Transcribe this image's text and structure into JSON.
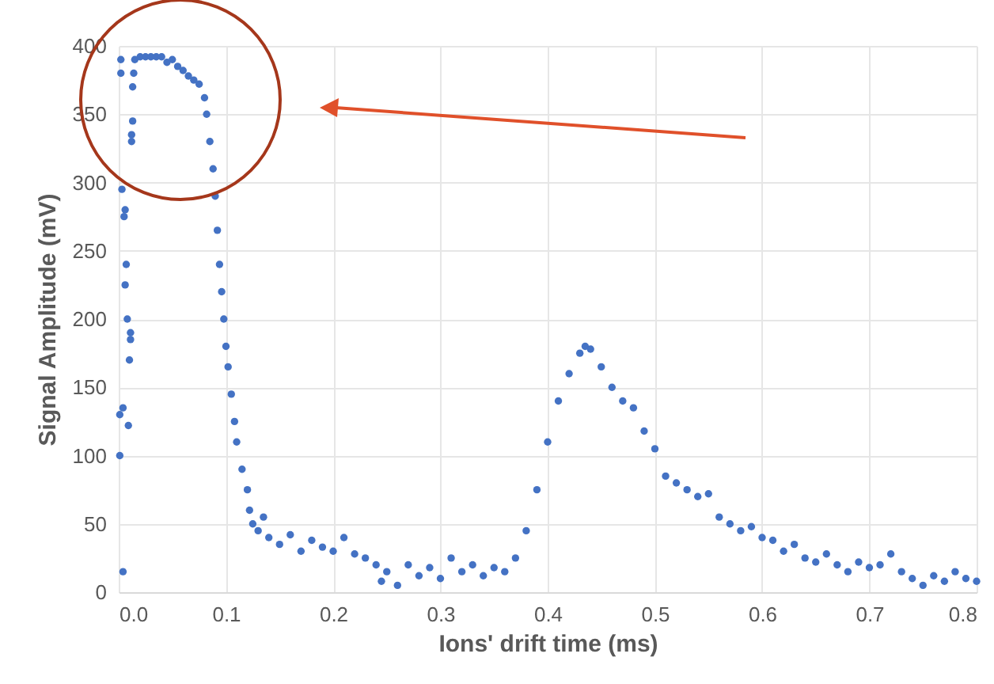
{
  "chart_data": {
    "type": "scatter",
    "xlabel": "Ions' drift time (ms)",
    "ylabel": "Signal Amplitude (mV)",
    "xlim": [
      0,
      0.8
    ],
    "xticks": [
      {
        "value": 0,
        "label": "0.0"
      },
      0.1,
      0.2,
      0.3,
      0.4,
      0.5,
      0.6,
      0.7,
      0.8
    ],
    "ylim": [
      0,
      400
    ],
    "yticks": [
      0,
      50,
      100,
      150,
      200,
      250,
      300,
      350,
      400
    ],
    "grid": true,
    "marker": "circle",
    "series": [
      {
        "color": "#4472c4",
        "x": [
          0.001,
          0.001,
          0.002,
          0.002,
          0.003,
          0.004,
          0.004,
          0.005,
          0.006,
          0.006,
          0.007,
          0.008,
          0.009,
          0.01,
          0.011,
          0.011,
          0.012,
          0.012,
          0.013,
          0.013,
          0.014,
          0.015,
          0.02,
          0.025,
          0.03,
          0.035,
          0.04,
          0.045,
          0.05,
          0.055,
          0.06,
          0.065,
          0.07,
          0.075,
          0.08,
          0.082,
          0.085,
          0.088,
          0.09,
          0.092,
          0.094,
          0.096,
          0.098,
          0.1,
          0.102,
          0.105,
          0.108,
          0.11,
          0.115,
          0.12,
          0.122,
          0.125,
          0.13,
          0.135,
          0.14,
          0.15,
          0.16,
          0.17,
          0.18,
          0.19,
          0.2,
          0.21,
          0.22,
          0.23,
          0.24,
          0.245,
          0.25,
          0.26,
          0.27,
          0.28,
          0.29,
          0.3,
          0.31,
          0.32,
          0.33,
          0.34,
          0.35,
          0.36,
          0.37,
          0.38,
          0.39,
          0.4,
          0.41,
          0.42,
          0.43,
          0.435,
          0.44,
          0.45,
          0.46,
          0.47,
          0.48,
          0.49,
          0.5,
          0.51,
          0.52,
          0.53,
          0.54,
          0.55,
          0.56,
          0.57,
          0.58,
          0.59,
          0.6,
          0.61,
          0.62,
          0.63,
          0.64,
          0.65,
          0.66,
          0.67,
          0.68,
          0.69,
          0.7,
          0.71,
          0.72,
          0.73,
          0.74,
          0.75,
          0.76,
          0.77,
          0.78,
          0.79,
          0.8
        ],
        "values": [
          100,
          130,
          390,
          380,
          295,
          15,
          135,
          275,
          280,
          225,
          240,
          200,
          122,
          170,
          185,
          190,
          330,
          335,
          345,
          370,
          380,
          390,
          392,
          392,
          392,
          392,
          392,
          388,
          390,
          385,
          382,
          378,
          375,
          372,
          362,
          350,
          330,
          310,
          290,
          265,
          240,
          220,
          200,
          180,
          165,
          145,
          125,
          110,
          90,
          75,
          60,
          50,
          45,
          55,
          40,
          35,
          42,
          30,
          38,
          33,
          30,
          40,
          28,
          25,
          20,
          8,
          15,
          5,
          20,
          12,
          18,
          10,
          25,
          15,
          20,
          12,
          18,
          15,
          25,
          45,
          75,
          110,
          140,
          160,
          175,
          180,
          178,
          165,
          150,
          140,
          135,
          118,
          105,
          85,
          80,
          75,
          70,
          72,
          55,
          50,
          45,
          48,
          40,
          38,
          30,
          35,
          25,
          22,
          28,
          20,
          15,
          22,
          18,
          20,
          28,
          15,
          10,
          5,
          12,
          8,
          15,
          10,
          8
        ]
      }
    ]
  }
}
